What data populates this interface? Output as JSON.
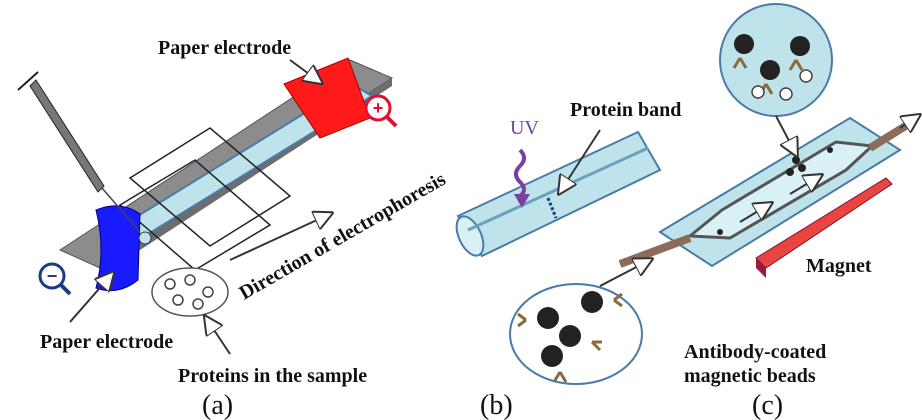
{
  "panel_a": {
    "caption": "(a)",
    "label_paper_electrode_top": "Paper electrode",
    "label_direction": "Direction of electrophoresis",
    "label_paper_electrode_bottom": "Paper electrode",
    "label_proteins": "Proteins in the sample",
    "symbol_plus": "+",
    "symbol_minus": "−"
  },
  "panel_b": {
    "caption": "(b)",
    "label_uv": "UV",
    "label_protein_band": "Protein band"
  },
  "panel_c": {
    "caption": "(c)",
    "label_magnet": "Magnet",
    "label_beads_line1": "Antibody-coated",
    "label_beads_line2": "magnetic beads"
  },
  "colors": {
    "anode": "#ff1a1a",
    "cathode": "#1a1aff",
    "channel": "#bfe3ea",
    "uv": "#7a3fa0",
    "magnet_top": "#e02060",
    "bead": "#222222"
  }
}
